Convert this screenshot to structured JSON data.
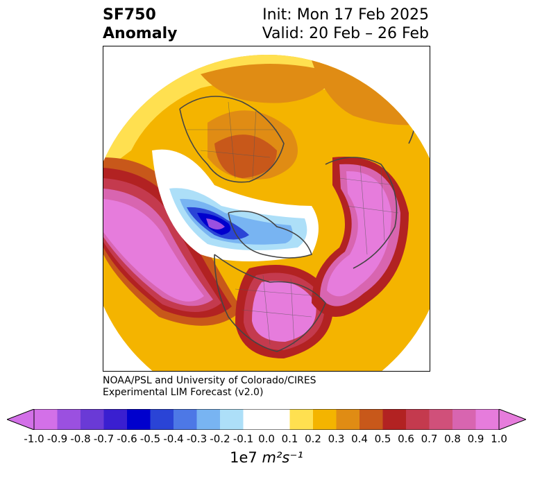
{
  "title": {
    "line1": "SF750",
    "line2": "Anomaly"
  },
  "init_label": "Init: Mon 17 Feb 2025",
  "valid_label": "Valid: 20 Feb – 26 Feb",
  "credit": {
    "line1": "NOAA/PSL and University of Colorado/CIRES",
    "line2": "Experimental LIM Forecast (v2.0)"
  },
  "colorbar": {
    "units_prefix": "1e7",
    "units_math": "m²s⁻¹",
    "ticks": [
      "-1.0",
      "-0.9",
      "-0.8",
      "-0.7",
      "-0.6",
      "-0.5",
      "-0.4",
      "-0.3",
      "-0.2",
      "-0.1",
      "0.0",
      "0.1",
      "0.2",
      "0.3",
      "0.4",
      "0.5",
      "0.6",
      "0.7",
      "0.8",
      "0.9",
      "1.0"
    ],
    "colors": [
      "#d370e8",
      "#9b50e0",
      "#6a3ad6",
      "#3a1fd0",
      "#0000cd",
      "#2a44d6",
      "#4d78e6",
      "#78b4f2",
      "#addff8",
      "#ffffff",
      "#ffffff",
      "#ffe050",
      "#f4b400",
      "#e08c14",
      "#c8581a",
      "#b22222",
      "#c43a4e",
      "#d0507a",
      "#d865b0",
      "#e67cdc"
    ],
    "extend_low_color": "#d370e8",
    "extend_high_color": "#e67cdc"
  }
}
